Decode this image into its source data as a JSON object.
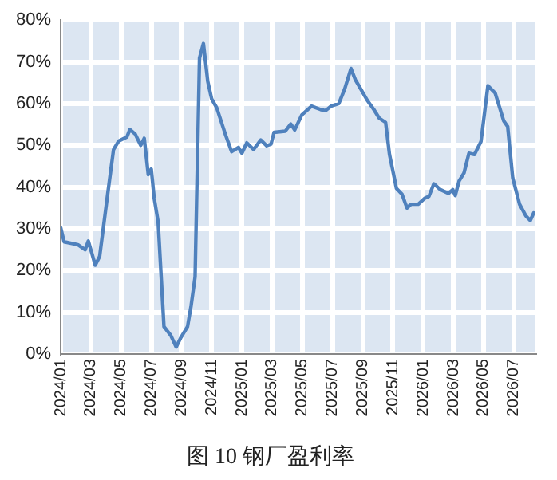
{
  "chart_data": {
    "type": "line",
    "title": "图 10 钢厂盈利率",
    "x": [
      "2024-01-01",
      "2024-01-08",
      "2024-02-05",
      "2024-02-19",
      "2024-02-25",
      "2024-03-10",
      "2024-03-19",
      "2024-04-04",
      "2024-04-16",
      "2024-04-26",
      "2024-05-13",
      "2024-05-19",
      "2024-05-30",
      "2024-06-10",
      "2024-06-17",
      "2024-06-25",
      "2024-07-01",
      "2024-07-07",
      "2024-07-15",
      "2024-07-27",
      "2024-08-10",
      "2024-08-21",
      "2024-08-30",
      "2024-09-13",
      "2024-09-20",
      "2024-09-28",
      "2024-10-07",
      "2024-10-15",
      "2024-10-24",
      "2024-11-01",
      "2024-11-11",
      "2024-11-28",
      "2024-12-11",
      "2024-12-25",
      "2025-01-01",
      "2025-01-11",
      "2025-01-25",
      "2025-02-08",
      "2025-02-19",
      "2025-02-27",
      "2025-03-05",
      "2025-03-28",
      "2025-04-08",
      "2025-04-16",
      "2025-04-30",
      "2025-05-20",
      "2025-06-07",
      "2025-06-17",
      "2025-06-28",
      "2025-07-14",
      "2025-07-26",
      "2025-08-08",
      "2025-08-17",
      "2025-08-28",
      "2025-09-10",
      "2025-09-23",
      "2025-10-04",
      "2025-10-17",
      "2025-10-25",
      "2025-11-08",
      "2025-11-19",
      "2025-11-29",
      "2025-12-07",
      "2025-12-22",
      "2026-01-04",
      "2026-01-13",
      "2026-01-23",
      "2026-02-05",
      "2026-02-20",
      "2026-02-28",
      "2026-03-05",
      "2026-03-13",
      "2026-03-23",
      "2026-04-02",
      "2026-04-13",
      "2026-04-26",
      "2026-05-10",
      "2026-05-25",
      "2026-06-11",
      "2026-06-19",
      "2026-06-29",
      "2026-07-13",
      "2026-07-26",
      "2026-08-04",
      "2026-08-11"
    ],
    "series": [
      {
        "color": "#4f81bd",
        "values": [
          30.3,
          26.9,
          26.2,
          25,
          27.1,
          21.3,
          23.4,
          38,
          49,
          51,
          52,
          53.8,
          52.7,
          50,
          51.7,
          43,
          44.3,
          37.3,
          31.7,
          6.6,
          4.5,
          1.7,
          3.8,
          6.6,
          11.5,
          18.5,
          70.9,
          74.4,
          65.3,
          61.1,
          59,
          52.7,
          48.5,
          49.5,
          48.1,
          50.6,
          49,
          51.3,
          49.9,
          50.3,
          53.1,
          53.4,
          55.1,
          53.7,
          57.3,
          59.4,
          58.6,
          58.3,
          59.4,
          60,
          63.5,
          68.4,
          65.7,
          63.5,
          60.8,
          58.6,
          56.5,
          55.5,
          47.8,
          39.7,
          38.3,
          35,
          35.9,
          35.9,
          37.3,
          37.8,
          40.8,
          39.4,
          38.5,
          39.4,
          38,
          41.5,
          43.4,
          48.1,
          47.8,
          50.9,
          64.3,
          62.5,
          55.9,
          54.5,
          42.2,
          35.9,
          33.1,
          32,
          33.8
        ]
      }
    ],
    "xlim": [
      "2024-01-01",
      "2026-08-13"
    ],
    "xticks": [
      {
        "value": "2024-01",
        "label": "2024/01"
      },
      {
        "value": "2024-03",
        "label": "2024/03"
      },
      {
        "value": "2024-05",
        "label": "2024/05"
      },
      {
        "value": "2024-07",
        "label": "2024/07"
      },
      {
        "value": "2024-09",
        "label": "2024/09"
      },
      {
        "value": "2024-11",
        "label": "2024/11"
      },
      {
        "value": "2025-01",
        "label": "2025/01"
      },
      {
        "value": "2025-03",
        "label": "2025/03"
      },
      {
        "value": "2025-05",
        "label": "2025/05"
      },
      {
        "value": "2025-07",
        "label": "2025/07"
      },
      {
        "value": "2025-09",
        "label": "2025/09"
      },
      {
        "value": "2025-11",
        "label": "2025/11"
      },
      {
        "value": "2026-01",
        "label": "2026/01"
      },
      {
        "value": "2026-03",
        "label": "2026/03"
      },
      {
        "value": "2026-05",
        "label": "2026/05"
      },
      {
        "value": "2026-07",
        "label": "2026/07"
      }
    ],
    "ylim": [
      0,
      80
    ],
    "yticks": [
      {
        "value": 0,
        "label": "0%"
      },
      {
        "value": 10,
        "label": "10%"
      },
      {
        "value": 20,
        "label": "20%"
      },
      {
        "value": 30,
        "label": "30%"
      },
      {
        "value": 40,
        "label": "40%"
      },
      {
        "value": 50,
        "label": "50%"
      },
      {
        "value": 60,
        "label": "60%"
      },
      {
        "value": 70,
        "label": "70%"
      },
      {
        "value": 80,
        "label": "80%"
      }
    ],
    "grid": true,
    "legend": false,
    "marker": "none",
    "line_style": "solid"
  }
}
